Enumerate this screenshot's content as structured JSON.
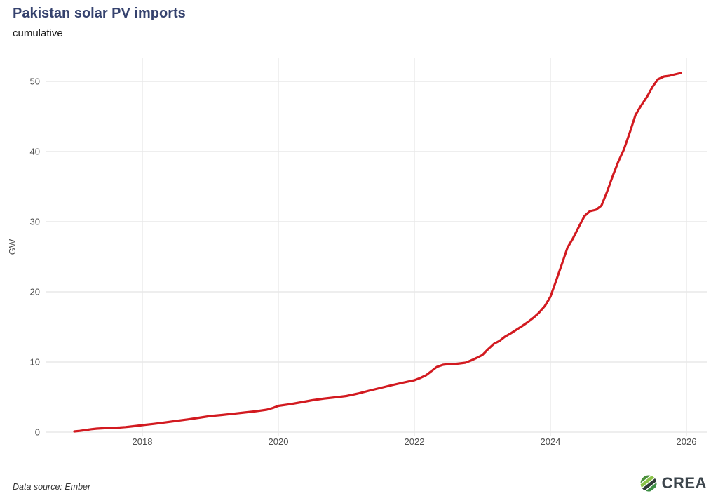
{
  "header": {
    "title": "Pakistan solar PV imports",
    "subtitle": "cumulative"
  },
  "footer": {
    "source": "Data source: Ember",
    "brand": "CREA"
  },
  "colors": {
    "title": "#35426e",
    "line": "#d21a20",
    "grid": "#e9e9e9",
    "tick_text": "#4d4d4d",
    "logo_greens": [
      "#4a8f3c",
      "#8bc34a",
      "#2e3a36",
      "#3f8f46"
    ]
  },
  "chart_data": {
    "type": "line",
    "title": "Pakistan solar PV imports",
    "subtitle": "cumulative",
    "xlabel": "",
    "ylabel": "GW",
    "x_ticks": [
      2018,
      2020,
      2022,
      2024,
      2026
    ],
    "y_ticks": [
      0,
      10,
      20,
      30,
      40,
      50
    ],
    "xlim": [
      2016.95,
      2026.3
    ],
    "ylim": [
      0,
      53.3
    ],
    "grid": true,
    "legend_position": "none",
    "series": [
      {
        "name": "Cumulative solar PV imports (GW)",
        "color": "#d21a20",
        "points": [
          [
            2017.0,
            0.1
          ],
          [
            2017.08,
            0.18
          ],
          [
            2017.17,
            0.3
          ],
          [
            2017.25,
            0.42
          ],
          [
            2017.33,
            0.5
          ],
          [
            2017.42,
            0.55
          ],
          [
            2017.5,
            0.58
          ],
          [
            2017.58,
            0.62
          ],
          [
            2017.67,
            0.66
          ],
          [
            2017.75,
            0.72
          ],
          [
            2017.83,
            0.8
          ],
          [
            2017.92,
            0.9
          ],
          [
            2018.0,
            1.0
          ],
          [
            2018.17,
            1.18
          ],
          [
            2018.33,
            1.38
          ],
          [
            2018.5,
            1.6
          ],
          [
            2018.67,
            1.82
          ],
          [
            2018.83,
            2.05
          ],
          [
            2019.0,
            2.3
          ],
          [
            2019.17,
            2.45
          ],
          [
            2019.33,
            2.62
          ],
          [
            2019.5,
            2.8
          ],
          [
            2019.67,
            2.98
          ],
          [
            2019.83,
            3.2
          ],
          [
            2019.92,
            3.45
          ],
          [
            2020.0,
            3.75
          ],
          [
            2020.17,
            3.98
          ],
          [
            2020.33,
            4.25
          ],
          [
            2020.5,
            4.55
          ],
          [
            2020.67,
            4.78
          ],
          [
            2020.83,
            4.95
          ],
          [
            2021.0,
            5.15
          ],
          [
            2021.17,
            5.5
          ],
          [
            2021.33,
            5.9
          ],
          [
            2021.5,
            6.3
          ],
          [
            2021.67,
            6.7
          ],
          [
            2021.83,
            7.05
          ],
          [
            2022.0,
            7.4
          ],
          [
            2022.08,
            7.7
          ],
          [
            2022.17,
            8.1
          ],
          [
            2022.25,
            8.7
          ],
          [
            2022.33,
            9.3
          ],
          [
            2022.42,
            9.6
          ],
          [
            2022.5,
            9.7
          ],
          [
            2022.58,
            9.7
          ],
          [
            2022.67,
            9.8
          ],
          [
            2022.75,
            9.9
          ],
          [
            2022.83,
            10.2
          ],
          [
            2022.92,
            10.6
          ],
          [
            2023.0,
            11.0
          ],
          [
            2023.08,
            11.8
          ],
          [
            2023.17,
            12.6
          ],
          [
            2023.25,
            13.0
          ],
          [
            2023.33,
            13.6
          ],
          [
            2023.42,
            14.1
          ],
          [
            2023.5,
            14.6
          ],
          [
            2023.58,
            15.1
          ],
          [
            2023.67,
            15.7
          ],
          [
            2023.75,
            16.3
          ],
          [
            2023.83,
            17.0
          ],
          [
            2023.92,
            18.0
          ],
          [
            2024.0,
            19.3
          ],
          [
            2024.08,
            21.5
          ],
          [
            2024.17,
            24.0
          ],
          [
            2024.25,
            26.3
          ],
          [
            2024.33,
            27.6
          ],
          [
            2024.42,
            29.3
          ],
          [
            2024.5,
            30.8
          ],
          [
            2024.58,
            31.5
          ],
          [
            2024.67,
            31.7
          ],
          [
            2024.75,
            32.3
          ],
          [
            2024.83,
            34.2
          ],
          [
            2024.92,
            36.6
          ],
          [
            2025.0,
            38.6
          ],
          [
            2025.08,
            40.3
          ],
          [
            2025.17,
            42.8
          ],
          [
            2025.25,
            45.2
          ],
          [
            2025.33,
            46.5
          ],
          [
            2025.42,
            47.8
          ],
          [
            2025.5,
            49.2
          ],
          [
            2025.58,
            50.3
          ],
          [
            2025.67,
            50.7
          ],
          [
            2025.75,
            50.8
          ],
          [
            2025.83,
            51.0
          ],
          [
            2025.92,
            51.2
          ]
        ]
      }
    ]
  }
}
